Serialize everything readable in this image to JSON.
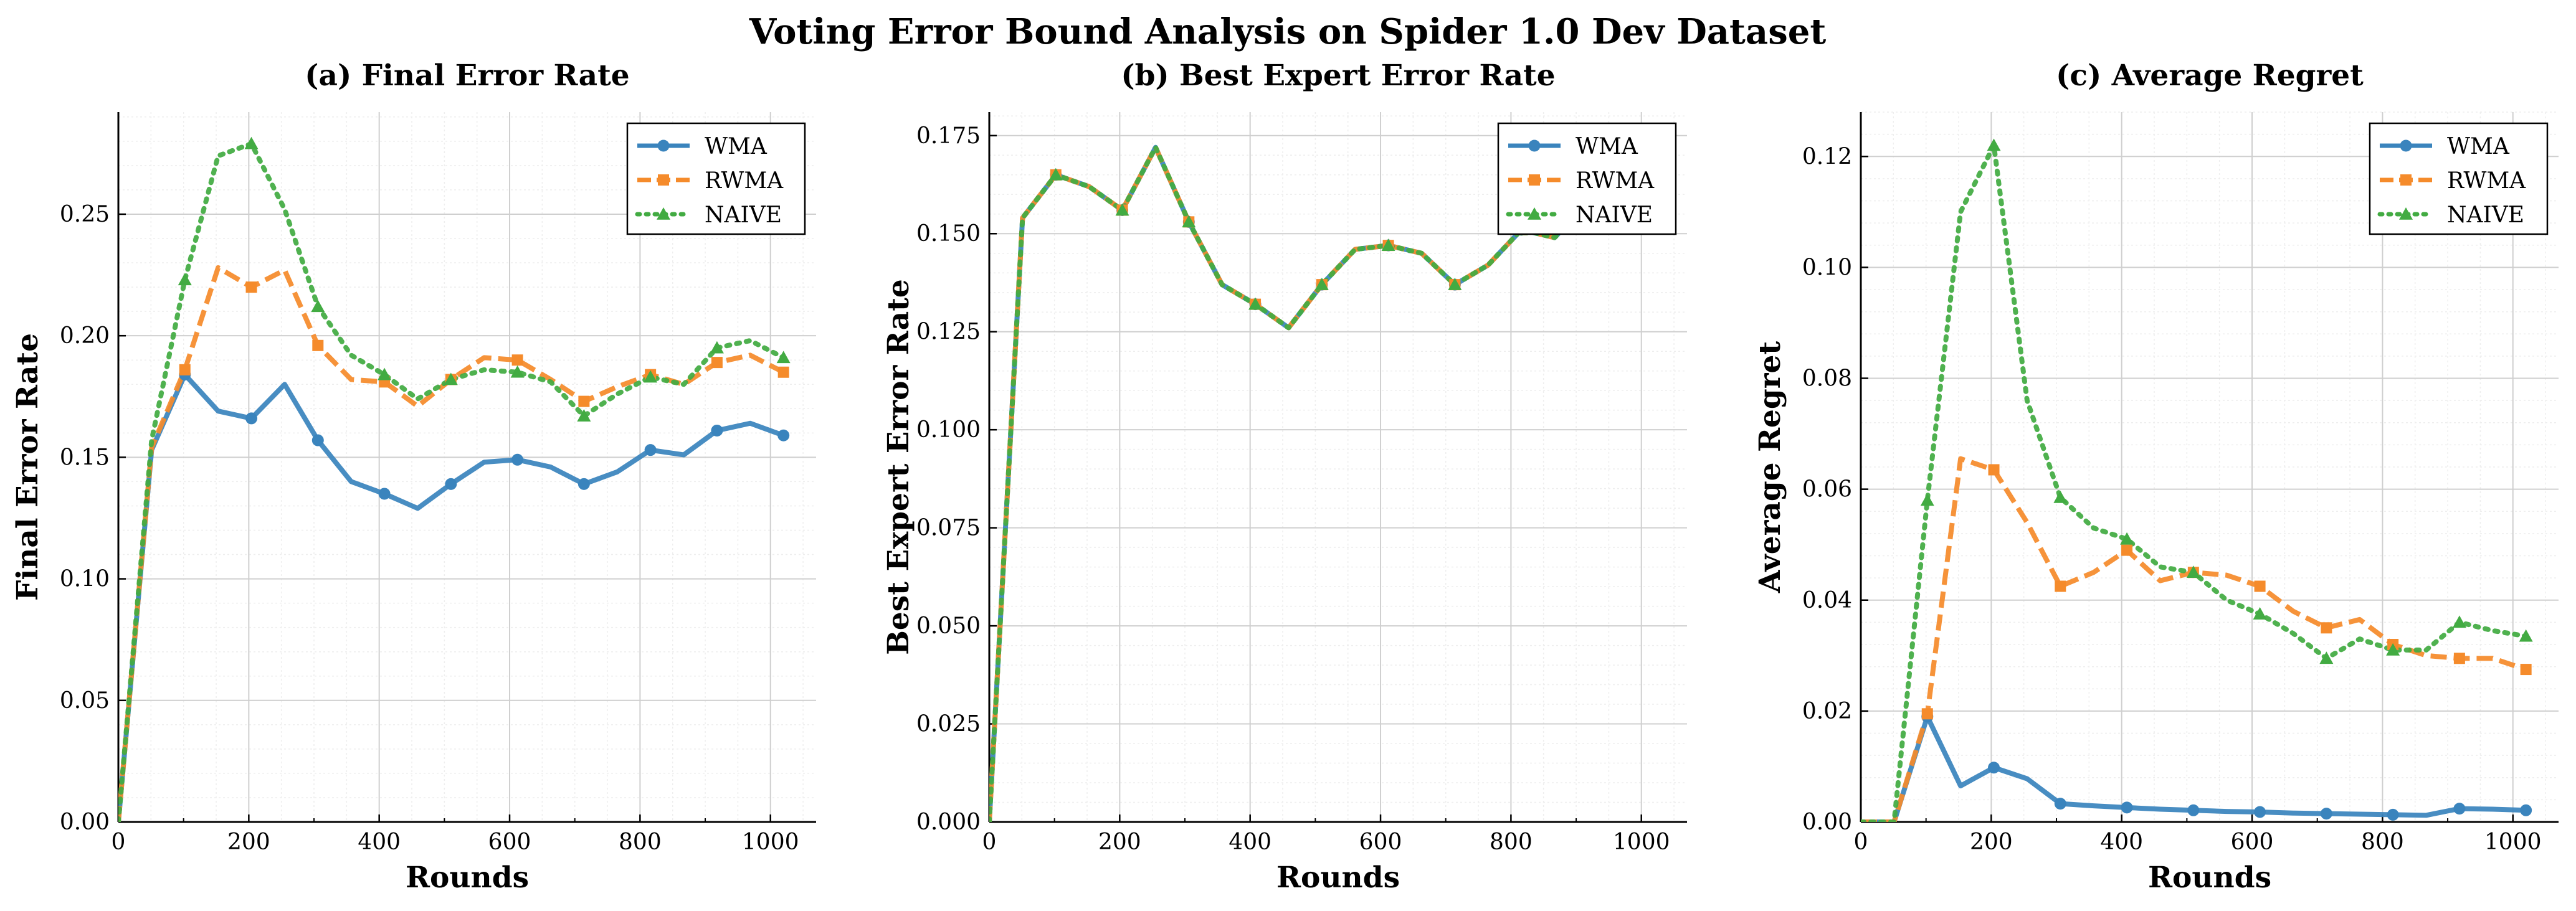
{
  "figure": {
    "title": "Voting Error Bound Analysis on Spider 1.0 Dev Dataset",
    "colors": {
      "WMA": "#3a84bd",
      "RWMA": "#f58b2b",
      "NAIVE": "#42ab42"
    }
  },
  "chart_data": [
    {
      "type": "line",
      "title": "(a) Final Error Rate",
      "xlabel": "Rounds",
      "ylabel": "Final Error Rate",
      "xlim": [
        0,
        1070
      ],
      "ylim": [
        0,
        0.292
      ],
      "xticks": [
        0,
        200,
        400,
        600,
        800,
        1000
      ],
      "yticks": [
        0.0,
        0.05,
        0.1,
        0.15,
        0.2,
        0.25
      ],
      "ytick_labels": [
        "0.00",
        "0.05",
        "0.10",
        "0.15",
        "0.20",
        "0.25"
      ],
      "grid": true,
      "legend": "top-right",
      "legend_entries": [
        "WMA",
        "RWMA",
        "NAIVE"
      ],
      "x": [
        0,
        51,
        102,
        153,
        204,
        255,
        306,
        357,
        408,
        459,
        510,
        561,
        612,
        663,
        714,
        765,
        816,
        867,
        918,
        969,
        1020
      ],
      "series": [
        {
          "name": "WMA",
          "style": "solid",
          "marker": "circle",
          "values": [
            0.0,
            0.153,
            0.184,
            0.169,
            0.166,
            0.18,
            0.157,
            0.14,
            0.135,
            0.129,
            0.139,
            0.148,
            0.149,
            0.146,
            0.139,
            0.144,
            0.153,
            0.151,
            0.161,
            0.164,
            0.159
          ]
        },
        {
          "name": "RWMA",
          "style": "dashed",
          "marker": "square",
          "values": [
            0.0,
            0.154,
            0.186,
            0.228,
            0.22,
            0.227,
            0.196,
            0.182,
            0.181,
            0.171,
            0.182,
            0.191,
            0.19,
            0.182,
            0.173,
            0.179,
            0.184,
            0.18,
            0.189,
            0.192,
            0.185
          ]
        },
        {
          "name": "NAIVE",
          "style": "dotted",
          "marker": "triangle",
          "values": [
            0.0,
            0.157,
            0.223,
            0.274,
            0.279,
            0.252,
            0.212,
            0.192,
            0.184,
            0.174,
            0.182,
            0.186,
            0.185,
            0.181,
            0.167,
            0.176,
            0.183,
            0.18,
            0.195,
            0.198,
            0.191
          ]
        }
      ]
    },
    {
      "type": "line",
      "title": "(b) Best Expert Error Rate",
      "xlabel": "Rounds",
      "ylabel": "Best Expert Error Rate",
      "xlim": [
        0,
        1070
      ],
      "ylim": [
        0,
        0.181
      ],
      "xticks": [
        0,
        200,
        400,
        600,
        800,
        1000
      ],
      "yticks": [
        0.0,
        0.025,
        0.05,
        0.075,
        0.1,
        0.125,
        0.15,
        0.175
      ],
      "ytick_labels": [
        "0.000",
        "0.025",
        "0.050",
        "0.075",
        "0.100",
        "0.125",
        "0.150",
        "0.175"
      ],
      "grid": true,
      "legend": "top-right",
      "legend_entries": [
        "WMA",
        "RWMA",
        "NAIVE"
      ],
      "x": [
        0,
        51,
        102,
        153,
        204,
        255,
        306,
        357,
        408,
        459,
        510,
        561,
        612,
        663,
        714,
        765,
        816,
        867,
        918,
        969,
        1020
      ],
      "series": [
        {
          "name": "WMA",
          "style": "solid",
          "marker": "circle",
          "values": [
            0.0,
            0.154,
            0.165,
            0.162,
            0.156,
            0.172,
            0.153,
            0.137,
            0.132,
            0.126,
            0.137,
            0.146,
            0.147,
            0.145,
            0.137,
            0.142,
            0.151,
            0.149,
            0.158,
            0.161,
            0.157
          ]
        },
        {
          "name": "RWMA",
          "style": "dashed",
          "marker": "square",
          "values": [
            0.0,
            0.154,
            0.165,
            0.162,
            0.156,
            0.172,
            0.153,
            0.137,
            0.132,
            0.126,
            0.137,
            0.146,
            0.147,
            0.145,
            0.137,
            0.142,
            0.151,
            0.149,
            0.158,
            0.161,
            0.157
          ]
        },
        {
          "name": "NAIVE",
          "style": "dotted",
          "marker": "triangle",
          "values": [
            0.0,
            0.154,
            0.165,
            0.162,
            0.156,
            0.172,
            0.153,
            0.137,
            0.132,
            0.126,
            0.137,
            0.146,
            0.147,
            0.145,
            0.137,
            0.142,
            0.151,
            0.149,
            0.158,
            0.161,
            0.157
          ]
        }
      ]
    },
    {
      "type": "line",
      "title": "(c) Average Regret",
      "xlabel": "Rounds",
      "ylabel": "Average Regret",
      "xlim": [
        0,
        1070
      ],
      "ylim": [
        0,
        0.128
      ],
      "xticks": [
        0,
        200,
        400,
        600,
        800,
        1000
      ],
      "yticks": [
        0.0,
        0.02,
        0.04,
        0.06,
        0.08,
        0.1,
        0.12
      ],
      "ytick_labels": [
        "0.00",
        "0.02",
        "0.04",
        "0.06",
        "0.08",
        "0.10",
        "0.12"
      ],
      "grid": true,
      "legend": "top-right",
      "legend_entries": [
        "WMA",
        "RWMA",
        "NAIVE"
      ],
      "x": [
        0,
        51,
        102,
        153,
        204,
        255,
        306,
        357,
        408,
        459,
        510,
        561,
        612,
        663,
        714,
        765,
        816,
        867,
        918,
        969,
        1020
      ],
      "series": [
        {
          "name": "WMA",
          "style": "solid",
          "marker": "circle",
          "values": [
            0.0,
            0.0,
            0.019,
            0.0065,
            0.0098,
            0.0078,
            0.0033,
            0.0029,
            0.0026,
            0.0023,
            0.0021,
            0.0019,
            0.0018,
            0.0016,
            0.0015,
            0.0014,
            0.0013,
            0.0012,
            0.0024,
            0.0023,
            0.0021
          ]
        },
        {
          "name": "RWMA",
          "style": "dashed",
          "marker": "square",
          "values": [
            0.0,
            0.0,
            0.0195,
            0.0655,
            0.0635,
            0.054,
            0.0425,
            0.045,
            0.049,
            0.0435,
            0.045,
            0.0445,
            0.0425,
            0.038,
            0.035,
            0.0365,
            0.032,
            0.03,
            0.0295,
            0.0295,
            0.0275
          ]
        },
        {
          "name": "NAIVE",
          "style": "dotted",
          "marker": "triangle",
          "values": [
            0.0,
            0.0,
            0.058,
            0.11,
            0.122,
            0.076,
            0.0585,
            0.053,
            0.051,
            0.046,
            0.045,
            0.04,
            0.0375,
            0.034,
            0.0295,
            0.033,
            0.031,
            0.031,
            0.036,
            0.0345,
            0.0335
          ]
        }
      ]
    }
  ]
}
